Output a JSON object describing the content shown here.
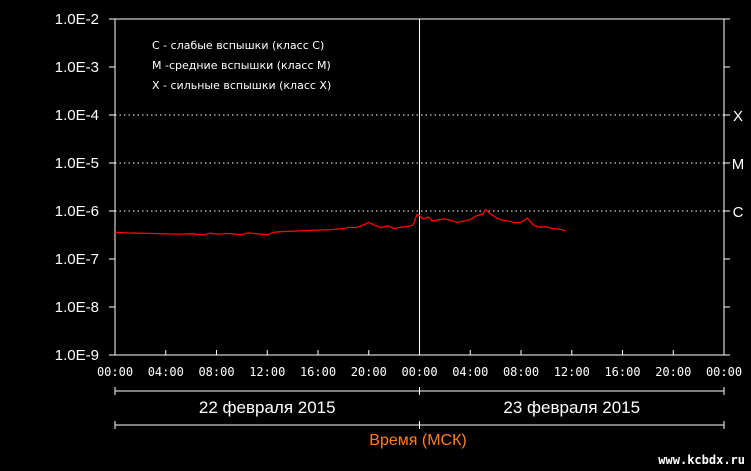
{
  "chart_data": {
    "type": "line",
    "yscale": "log",
    "ylim": [
      1e-09,
      0.01
    ],
    "y_ticks": [
      {
        "value": 0.01,
        "label": "1.0E-2"
      },
      {
        "value": 0.001,
        "label": "1.0E-3"
      },
      {
        "value": 0.0001,
        "label": "1.0E-4"
      },
      {
        "value": 1e-05,
        "label": "1.0E-5"
      },
      {
        "value": 1e-06,
        "label": "1.0E-6"
      },
      {
        "value": 1e-07,
        "label": "1.0E-7"
      },
      {
        "value": 1e-08,
        "label": "1.0E-8"
      },
      {
        "value": 1e-09,
        "label": "1.0E-9"
      }
    ],
    "xlim": [
      0,
      48
    ],
    "x_unit": "hours since 22 Feb 2015 00:00 MSK",
    "x_ticks": [
      {
        "value": 0,
        "label": "00:00"
      },
      {
        "value": 4,
        "label": "04:00"
      },
      {
        "value": 8,
        "label": "08:00"
      },
      {
        "value": 12,
        "label": "12:00"
      },
      {
        "value": 16,
        "label": "16:00"
      },
      {
        "value": 20,
        "label": "20:00"
      },
      {
        "value": 24,
        "label": "00:00"
      },
      {
        "value": 28,
        "label": "04:00"
      },
      {
        "value": 32,
        "label": "08:00"
      },
      {
        "value": 36,
        "label": "12:00"
      },
      {
        "value": 40,
        "label": "16:00"
      },
      {
        "value": 44,
        "label": "20:00"
      },
      {
        "value": 48,
        "label": "00:00"
      }
    ],
    "day_marker_x": 24,
    "days": [
      {
        "label": "22 февраля 2015",
        "from": 0,
        "to": 24
      },
      {
        "label": "23 февраля 2015",
        "from": 24,
        "to": 48
      }
    ],
    "xlabel": "Время (МСК)",
    "legend": [
      "C - слабые вспышки (класс C)",
      "M -средние вспышки (класс M)",
      "X - сильные вспышки (класс X)"
    ],
    "class_lines": [
      {
        "label": "X",
        "value": 0.0001
      },
      {
        "label": "M",
        "value": 1e-05
      },
      {
        "label": "C",
        "value": 1e-06
      }
    ],
    "series": [
      {
        "color": "#ff0000",
        "x": [
          0,
          1,
          2,
          3,
          4,
          5,
          6,
          7,
          7.5,
          8,
          9,
          10,
          10.5,
          11,
          12,
          12.5,
          13,
          14,
          15,
          16,
          17,
          18,
          18.5,
          19,
          19.5,
          20,
          20.5,
          21,
          21.5,
          22,
          22.5,
          23,
          23.5,
          23.8,
          24,
          24.3,
          24.7,
          25,
          26,
          27,
          28,
          28.5,
          29,
          29.2,
          29.5,
          30,
          30.5,
          31,
          31.5,
          32,
          32.5,
          33,
          33.5,
          34,
          34.5,
          35,
          35.5
        ],
        "y": [
          3.6e-07,
          3.5e-07,
          3.45e-07,
          3.4e-07,
          3.35e-07,
          3.3e-07,
          3.35e-07,
          3.2e-07,
          3.45e-07,
          3.3e-07,
          3.4e-07,
          3.2e-07,
          3.5e-07,
          3.4e-07,
          3.2e-07,
          3.6e-07,
          3.7e-07,
          3.8e-07,
          3.9e-07,
          4e-07,
          4.1e-07,
          4.3e-07,
          4.6e-07,
          4.5e-07,
          5e-07,
          5.8e-07,
          5e-07,
          4.5e-07,
          4.9e-07,
          4.3e-07,
          4.6e-07,
          4.7e-07,
          5.1e-07,
          8.5e-07,
          8e-07,
          6.8e-07,
          7.5e-07,
          6.2e-07,
          6.9e-07,
          5.8e-07,
          6.6e-07,
          8e-07,
          8.6e-07,
          1.08e-06,
          9e-07,
          7.4e-07,
          6.4e-07,
          6.2e-07,
          5.7e-07,
          5.8e-07,
          7.1e-07,
          5e-07,
          4.6e-07,
          4.7e-07,
          4.3e-07,
          4.2e-07,
          3.9e-07
        ]
      }
    ]
  },
  "watermark": "www.kcbdx.ru"
}
